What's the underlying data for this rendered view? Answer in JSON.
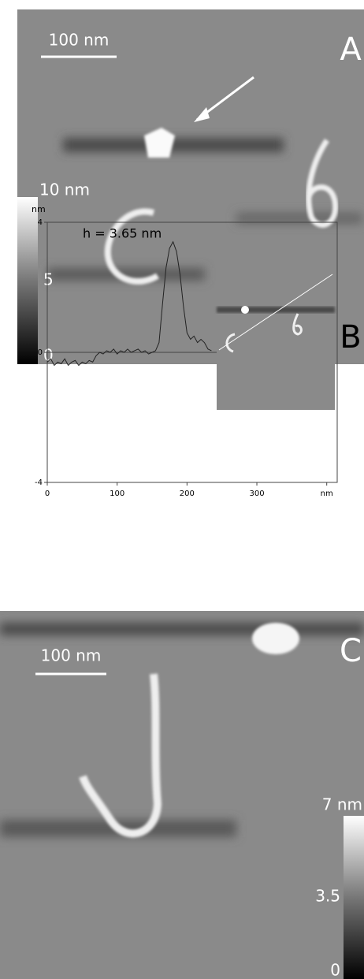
{
  "panel_a": {
    "label": "A",
    "scale_bar": "100 nm",
    "colorbar_ticks": [
      "10 nm",
      "5",
      "0"
    ]
  },
  "chart_data": {
    "type": "line",
    "label": "B",
    "annotation": "h = 3.65  nm",
    "y_label": "nm",
    "x": [
      0,
      5,
      10,
      15,
      20,
      25,
      30,
      35,
      40,
      45,
      50,
      55,
      60,
      65,
      70,
      75,
      80,
      85,
      90,
      95,
      100,
      105,
      110,
      115,
      120,
      125,
      130,
      135,
      140,
      145,
      150,
      155,
      160,
      165,
      170,
      175,
      180,
      185,
      190,
      195,
      200,
      205,
      210,
      215,
      220,
      225,
      230,
      235
    ],
    "series": [
      {
        "color": "#222222",
        "values": [
          -0.3,
          -0.2,
          -0.4,
          -0.3,
          -0.35,
          -0.2,
          -0.4,
          -0.3,
          -0.25,
          -0.4,
          -0.3,
          -0.35,
          -0.25,
          -0.3,
          -0.1,
          0,
          -0.05,
          0.05,
          0,
          0.1,
          -0.05,
          0.05,
          0,
          0.1,
          0,
          0.05,
          0.1,
          0,
          0.05,
          -0.05,
          0,
          0.05,
          0.3,
          1.5,
          2.6,
          3.2,
          3.4,
          3.1,
          2.4,
          1.4,
          0.6,
          0.4,
          0.5,
          0.3,
          0.4,
          0.3,
          0.1,
          0.05
        ]
      }
    ],
    "xlim": [
      0,
      415
    ],
    "xticks": [
      0,
      100,
      200,
      300,
      {
        "value": 400,
        "label": "nm"
      }
    ],
    "ylim": [
      -4,
      4
    ],
    "yticks": [
      -4,
      0,
      4
    ]
  },
  "panel_c": {
    "label": "C",
    "scale_bar": "100 nm",
    "colorbar_ticks": [
      "7 nm",
      "3.5",
      "0"
    ]
  }
}
